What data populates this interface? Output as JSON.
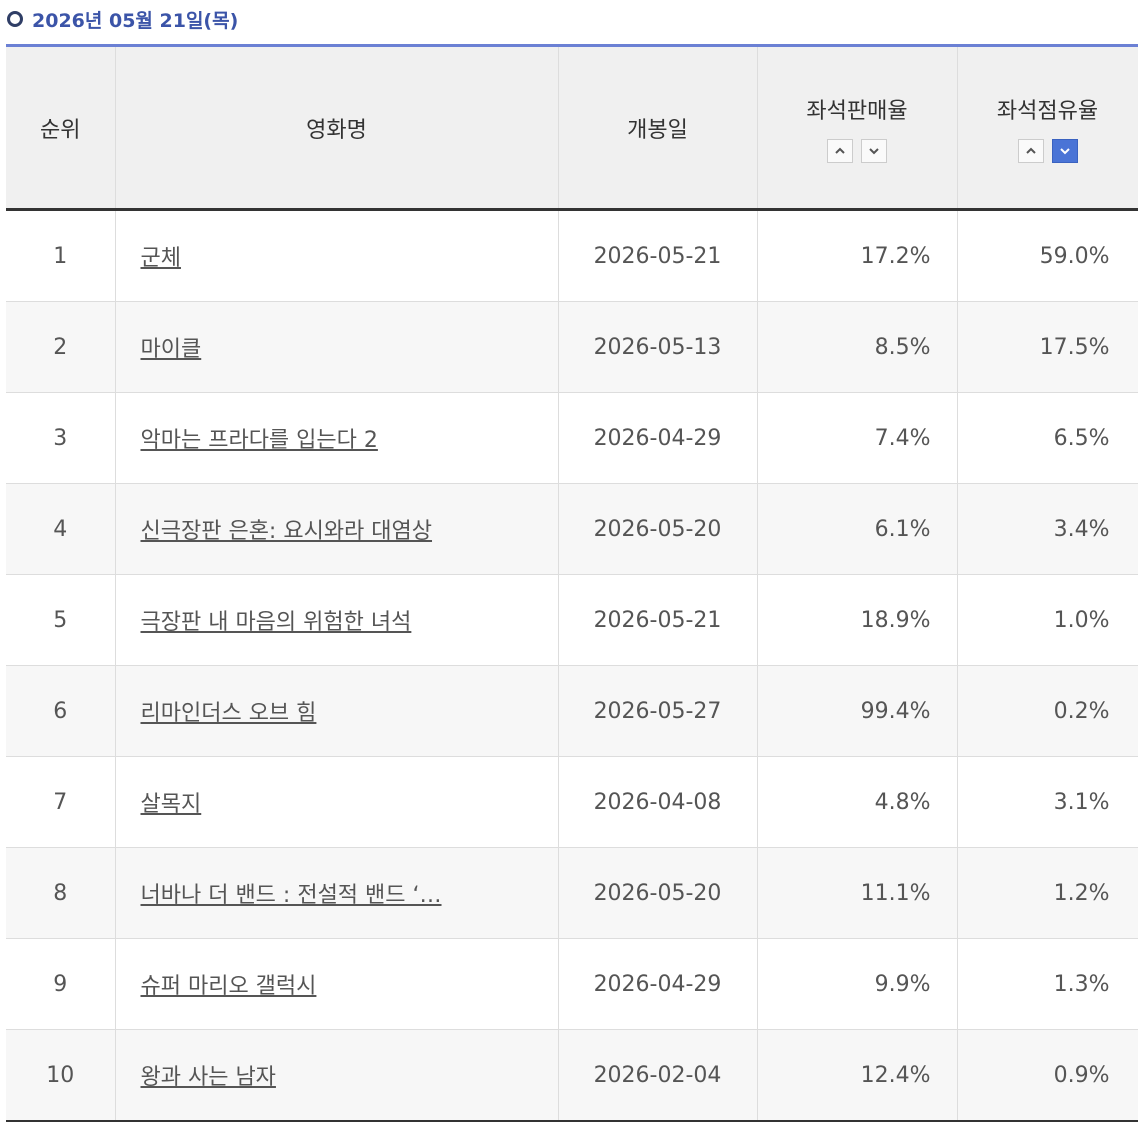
{
  "header": {
    "title": "2026년 05월 21일(목)"
  },
  "table": {
    "columns": [
      "순위",
      "영화명",
      "개봉일",
      "좌석판매율",
      "좌석점유율"
    ],
    "rows": [
      [
        "1",
        "군체",
        "2026-05-21",
        "17.2%",
        "59.0%"
      ],
      [
        "2",
        "마이클",
        "2026-05-13",
        "8.5%",
        "17.5%"
      ],
      [
        "3",
        "악마는 프라다를 입는다 2",
        "2026-04-29",
        "7.4%",
        "6.5%"
      ],
      [
        "4",
        "신극장판 은혼: 요시와라 대염상",
        "2026-05-20",
        "6.1%",
        "3.4%"
      ],
      [
        "5",
        "극장판 내 마음의 위험한 녀석",
        "2026-05-21",
        "18.9%",
        "1.0%"
      ],
      [
        "6",
        "리마인더스 오브 힘",
        "2026-05-27",
        "99.4%",
        "0.2%"
      ],
      [
        "7",
        "살목지",
        "2026-04-08",
        "4.8%",
        "3.1%"
      ],
      [
        "8",
        "너바나 더 밴드 : 전설적 밴드 ‘…",
        "2026-05-20",
        "11.1%",
        "1.2%"
      ],
      [
        "9",
        "슈퍼 마리오 갤럭시",
        "2026-04-29",
        "9.9%",
        "1.3%"
      ],
      [
        "10",
        "왕과 사는 남자",
        "2026-02-04",
        "12.4%",
        "0.9%"
      ]
    ]
  }
}
